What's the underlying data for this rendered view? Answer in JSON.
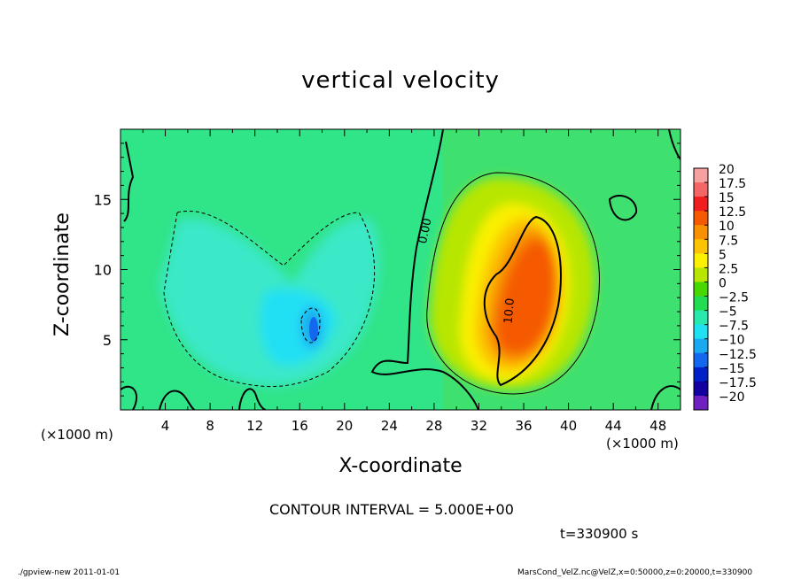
{
  "chart_data": {
    "type": "heatmap",
    "title": "vertical velocity",
    "xlabel": "X-coordinate",
    "ylabel": "Z-coordinate",
    "x_unit": "(×1000 m)",
    "y_unit": "",
    "xlim": [
      0,
      50
    ],
    "ylim": [
      0,
      20
    ],
    "x_ticks": [
      "4",
      "8",
      "12",
      "16",
      "20",
      "24",
      "28",
      "32",
      "36",
      "40",
      "44",
      "48"
    ],
    "y_ticks": [
      "5",
      "10",
      "15"
    ],
    "colorbar": {
      "labels": [
        "20",
        "17.5",
        "15",
        "12.5",
        "10",
        "7.5",
        "5",
        "2.5",
        "0",
        "−2.5",
        "−5",
        "−7.5",
        "−10",
        "−12.5",
        "−15",
        "−17.5",
        "−20"
      ],
      "colors": [
        "#f7a0a0",
        "#f46666",
        "#f01e1e",
        "#f55a00",
        "#f89000",
        "#fcc400",
        "#fbf000",
        "#b7e600",
        "#48d800",
        "#22dd50",
        "#28e8b0",
        "#20e0f4",
        "#1aa8f0",
        "#1468f0",
        "#0020c8",
        "#1400a0",
        "#7020c0"
      ]
    },
    "contour_labels": [
      "0.00",
      "10.0"
    ],
    "contour_interval": "CONTOUR INTERVAL = 5.000E+00",
    "time": "t=330900 s",
    "features": [
      {
        "kind": "updraft",
        "x": 35.5,
        "z": 8.5,
        "max": 15
      },
      {
        "kind": "downdraft",
        "x": 17,
        "z": 6,
        "min": -12.5
      }
    ]
  },
  "footer": {
    "left": "./gpview-new   2011-01-01",
    "right": "MarsCond_VelZ.nc@VelZ,x=0:50000,z=0:20000,t=330900"
  }
}
